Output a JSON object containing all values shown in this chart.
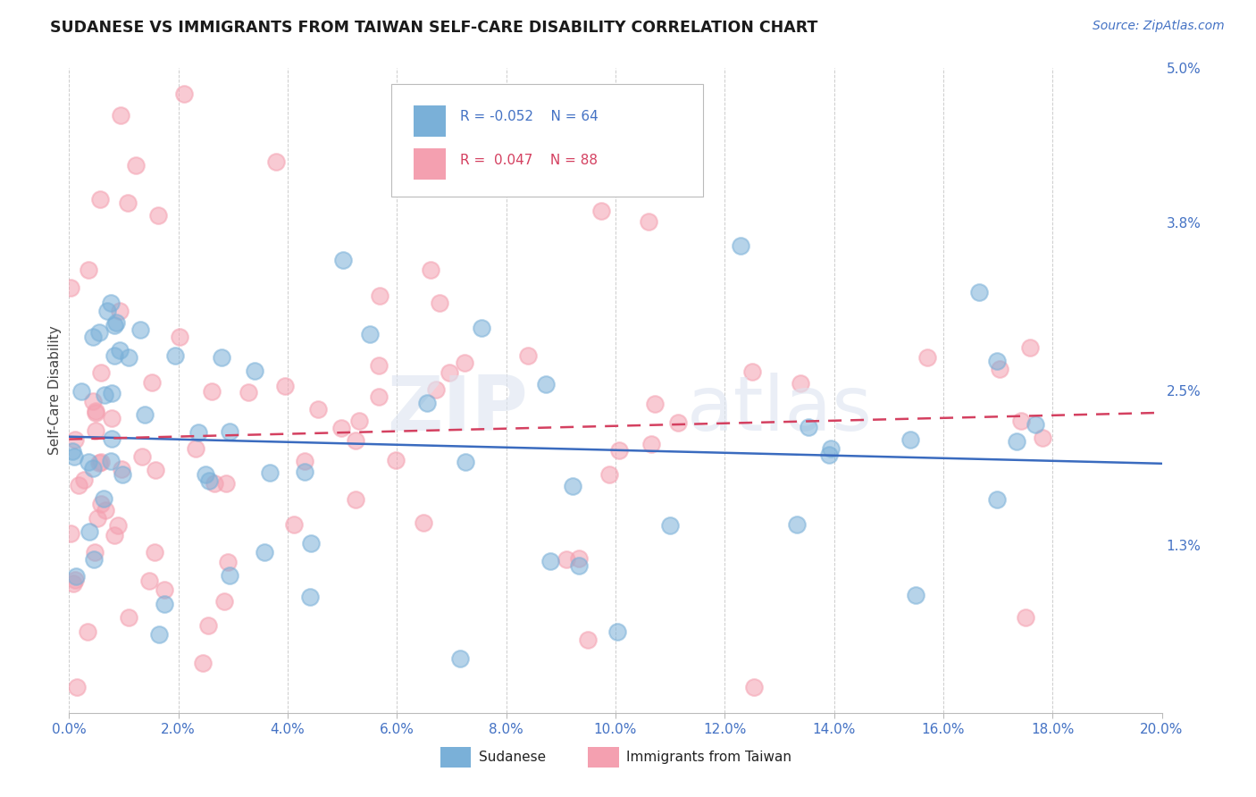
{
  "title": "SUDANESE VS IMMIGRANTS FROM TAIWAN SELF-CARE DISABILITY CORRELATION CHART",
  "source": "Source: ZipAtlas.com",
  "ylabel": "Self-Care Disability",
  "xlim": [
    0.0,
    0.2
  ],
  "ylim": [
    0.0,
    0.05
  ],
  "yticks": [
    0.013,
    0.025,
    0.038,
    0.05
  ],
  "ytick_labels": [
    "1.3%",
    "2.5%",
    "3.8%",
    "5.0%"
  ],
  "xtick_labels": [
    "0.0%",
    "2.0%",
    "4.0%",
    "6.0%",
    "8.0%",
    "10.0%",
    "12.0%",
    "14.0%",
    "16.0%",
    "18.0%",
    "20.0%"
  ],
  "xticks": [
    0.0,
    0.02,
    0.04,
    0.06,
    0.08,
    0.1,
    0.12,
    0.14,
    0.16,
    0.18,
    0.2
  ],
  "blue_color": "#7ab0d8",
  "pink_color": "#f4a0b0",
  "trend_blue": "#3a6bbf",
  "trend_pink": "#d44060",
  "label_color": "#4472C4",
  "background_color": "#ffffff",
  "series1_name": "Sudanese",
  "series2_name": "Immigrants from Taiwan",
  "series1_R": -0.052,
  "series1_N": 64,
  "series2_R": 0.047,
  "series2_N": 88
}
